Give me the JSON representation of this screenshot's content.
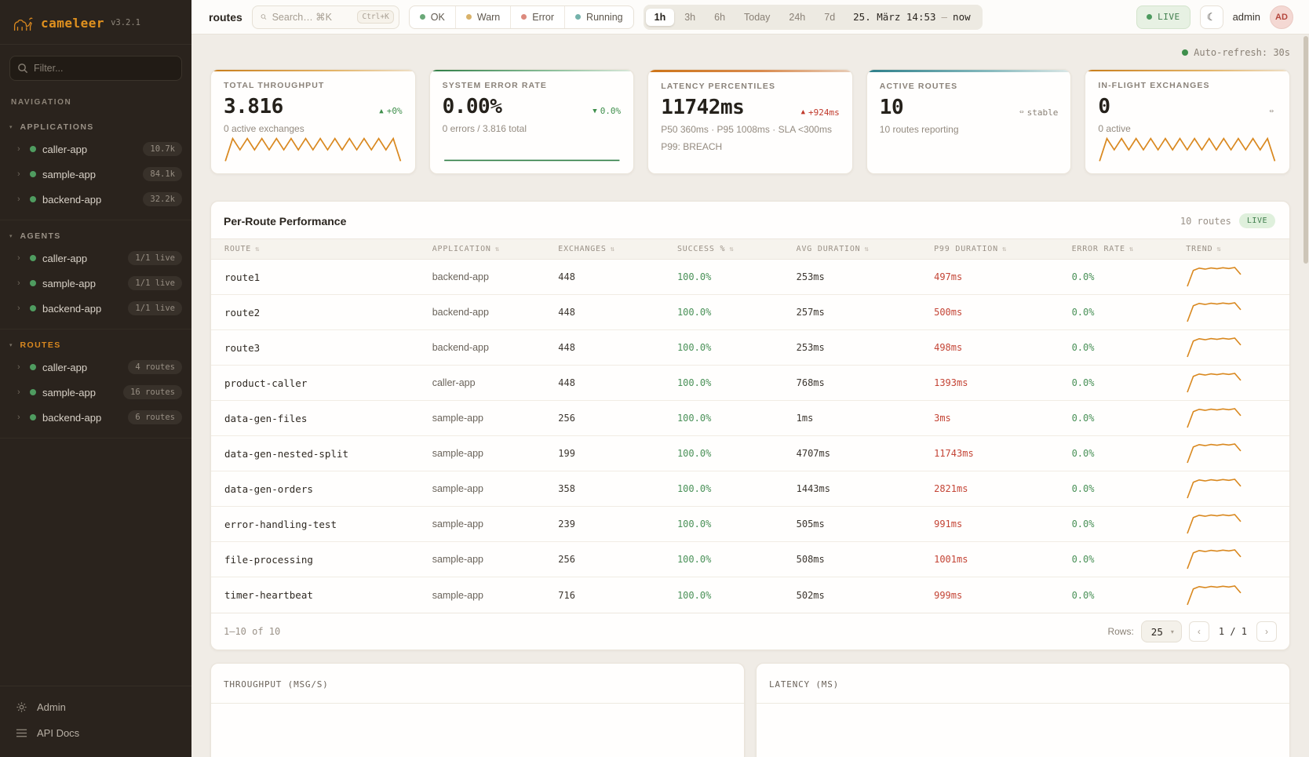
{
  "sidebar": {
    "logo": {
      "name": "cameleer",
      "version": "v3.2.1"
    },
    "filter_placeholder": "Filter...",
    "nav_label": "NAVIGATION",
    "sections": [
      {
        "label": "APPLICATIONS",
        "items": [
          {
            "name": "caller-app",
            "badge": "10.7k"
          },
          {
            "name": "sample-app",
            "badge": "84.1k"
          },
          {
            "name": "backend-app",
            "badge": "32.2k"
          }
        ]
      },
      {
        "label": "AGENTS",
        "items": [
          {
            "name": "caller-app",
            "badge": "1/1 live"
          },
          {
            "name": "sample-app",
            "badge": "1/1 live"
          },
          {
            "name": "backend-app",
            "badge": "1/1 live"
          }
        ]
      },
      {
        "label": "ROUTES",
        "items": [
          {
            "name": "caller-app",
            "badge": "4 routes"
          },
          {
            "name": "sample-app",
            "badge": "16 routes"
          },
          {
            "name": "backend-app",
            "badge": "6 routes"
          }
        ]
      }
    ],
    "footer": [
      {
        "label": "Admin"
      },
      {
        "label": "API Docs"
      }
    ]
  },
  "topbar": {
    "page_label": "routes",
    "search": {
      "placeholder": "Search… ⌘K",
      "kbd": "Ctrl+K"
    },
    "status_filters": [
      {
        "label": "OK",
        "color": "#6aa878"
      },
      {
        "label": "Warn",
        "color": "#d9b26a"
      },
      {
        "label": "Error",
        "color": "#dc8a7e"
      },
      {
        "label": "Running",
        "color": "#74b2ab"
      }
    ],
    "time_ranges": [
      "1h",
      "3h",
      "6h",
      "Today",
      "24h",
      "7d"
    ],
    "active_range": "1h",
    "date_range": {
      "from": "25. März 14:53",
      "sep": "—",
      "to": "now"
    },
    "live_label": "LIVE",
    "user": "admin",
    "avatar": "AD"
  },
  "autorefresh": "Auto-refresh: 30s",
  "kpis": [
    {
      "title": "TOTAL THROUGHPUT",
      "value": "3.816",
      "delta_icon": "▲",
      "delta": "+0%",
      "sub": "0 active exchanges"
    },
    {
      "title": "SYSTEM ERROR RATE",
      "value": "0.00%",
      "delta_icon": "▼",
      "delta": "0.0%",
      "sub": "0 errors / 3.816 total"
    },
    {
      "title": "LATENCY PERCENTILES",
      "value": "11742ms",
      "delta_icon": "▲",
      "delta": "+924ms",
      "sub": "P50 360ms · P95 1008ms · SLA <300ms",
      "sub2": "P99: BREACH"
    },
    {
      "title": "ACTIVE ROUTES",
      "value": "10",
      "delta_icon": "⇔",
      "delta": "stable",
      "sub": "10 routes reporting"
    },
    {
      "title": "IN-FLIGHT EXCHANGES",
      "value": "0",
      "delta_icon": "⇔",
      "delta": "",
      "sub": "0 active"
    }
  ],
  "table": {
    "title": "Per-Route Performance",
    "count_label": "10 routes",
    "live_label": "LIVE",
    "columns": [
      "ROUTE",
      "APPLICATION",
      "EXCHANGES",
      "SUCCESS %",
      "AVG DURATION",
      "P99 DURATION",
      "ERROR RATE",
      "TREND"
    ],
    "rows": [
      {
        "route": "route1",
        "app": "backend-app",
        "exchanges": "448",
        "success": "100.0%",
        "avg": "253ms",
        "p99": "497ms",
        "error": "0.0%"
      },
      {
        "route": "route2",
        "app": "backend-app",
        "exchanges": "448",
        "success": "100.0%",
        "avg": "257ms",
        "p99": "500ms",
        "error": "0.0%"
      },
      {
        "route": "route3",
        "app": "backend-app",
        "exchanges": "448",
        "success": "100.0%",
        "avg": "253ms",
        "p99": "498ms",
        "error": "0.0%"
      },
      {
        "route": "product-caller",
        "app": "caller-app",
        "exchanges": "448",
        "success": "100.0%",
        "avg": "768ms",
        "p99": "1393ms",
        "error": "0.0%"
      },
      {
        "route": "data-gen-files",
        "app": "sample-app",
        "exchanges": "256",
        "success": "100.0%",
        "avg": "1ms",
        "p99": "3ms",
        "error": "0.0%"
      },
      {
        "route": "data-gen-nested-split",
        "app": "sample-app",
        "exchanges": "199",
        "success": "100.0%",
        "avg": "4707ms",
        "p99": "11743ms",
        "error": "0.0%"
      },
      {
        "route": "data-gen-orders",
        "app": "sample-app",
        "exchanges": "358",
        "success": "100.0%",
        "avg": "1443ms",
        "p99": "2821ms",
        "error": "0.0%"
      },
      {
        "route": "error-handling-test",
        "app": "sample-app",
        "exchanges": "239",
        "success": "100.0%",
        "avg": "505ms",
        "p99": "991ms",
        "error": "0.0%"
      },
      {
        "route": "file-processing",
        "app": "sample-app",
        "exchanges": "256",
        "success": "100.0%",
        "avg": "508ms",
        "p99": "1001ms",
        "error": "0.0%"
      },
      {
        "route": "timer-heartbeat",
        "app": "sample-app",
        "exchanges": "716",
        "success": "100.0%",
        "avg": "502ms",
        "p99": "999ms",
        "error": "0.0%"
      }
    ],
    "footer": {
      "range": "1–10 of 10",
      "rows_label": "Rows:",
      "rows_value": "25",
      "prev": "‹",
      "page": "1 / 1",
      "next": "›"
    }
  },
  "charts": [
    {
      "title": "THROUGHPUT (MSG/S)"
    },
    {
      "title": "LATENCY (MS)"
    }
  ],
  "sparks": {
    "kpi_zigzag": [
      0.05,
      0.95,
      0.5,
      0.95,
      0.5,
      0.95,
      0.5,
      0.95,
      0.5,
      0.95,
      0.5,
      0.95,
      0.5,
      0.95,
      0.5,
      0.95,
      0.5,
      0.95,
      0.5,
      0.95,
      0.5,
      0.95,
      0.5,
      0.95,
      0.05
    ],
    "flat_line": [
      0.08,
      0.08
    ],
    "trend": [
      0.04,
      0.82,
      0.93,
      0.88,
      0.94,
      0.9,
      0.95,
      0.91,
      0.96,
      0.62
    ]
  },
  "colors": {
    "accent_orange": "#d9881f",
    "success_green": "#4a9158",
    "error_red": "#c44536",
    "teal": "#2e7f8a",
    "sidebar_bg": "#2a231d",
    "live_green": "#4c9a5e"
  }
}
